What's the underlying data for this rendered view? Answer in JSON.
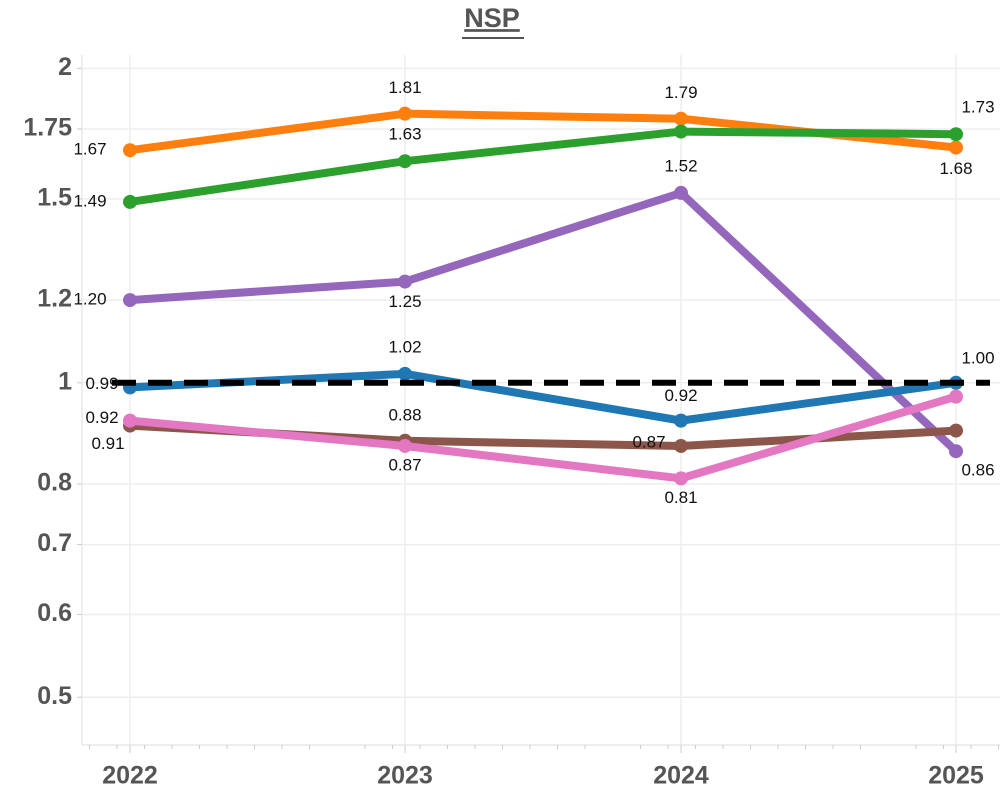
{
  "chart_data": {
    "type": "line",
    "title": "NSP",
    "categories": [
      "2022",
      "2023",
      "2024",
      "2025"
    ],
    "yscale": "log",
    "ylim": [
      0.45,
      2.06
    ],
    "yticks": [
      0.5,
      0.6,
      0.7,
      0.8,
      1,
      1.2,
      1.5,
      1.75,
      2
    ],
    "grid": true,
    "reference_line": {
      "value": 1,
      "color": "#000000"
    },
    "series": [
      {
        "color": "#ff7f0e",
        "values": [
          1.67,
          1.81,
          1.79,
          1.68
        ],
        "value_labels": [
          "1.67",
          "1.81",
          "1.79",
          "1.68"
        ]
      },
      {
        "color": "#2ca02c",
        "values": [
          1.49,
          1.63,
          1.74,
          1.73
        ],
        "value_labels": [
          "1.49",
          "1.63",
          null,
          "1.73"
        ]
      },
      {
        "color": "#9467bd",
        "values": [
          1.2,
          1.25,
          1.52,
          0.86
        ],
        "value_labels": [
          "1.20",
          "1.25",
          "1.52",
          "0.86"
        ]
      },
      {
        "color": "#1f77b4",
        "values": [
          0.99,
          1.02,
          0.92,
          1.0
        ],
        "value_labels": [
          "0.99",
          "1.02",
          "0.92",
          "1.00"
        ]
      },
      {
        "color": "#8c564b",
        "values": [
          0.91,
          0.88,
          0.87,
          0.9
        ],
        "value_labels": [
          "0.91",
          "0.88",
          "0.87",
          null
        ]
      },
      {
        "color": "#e377c2",
        "values": [
          0.92,
          0.87,
          0.81,
          0.97
        ],
        "value_labels": [
          "0.92",
          "0.87",
          "0.81",
          null
        ]
      }
    ]
  }
}
